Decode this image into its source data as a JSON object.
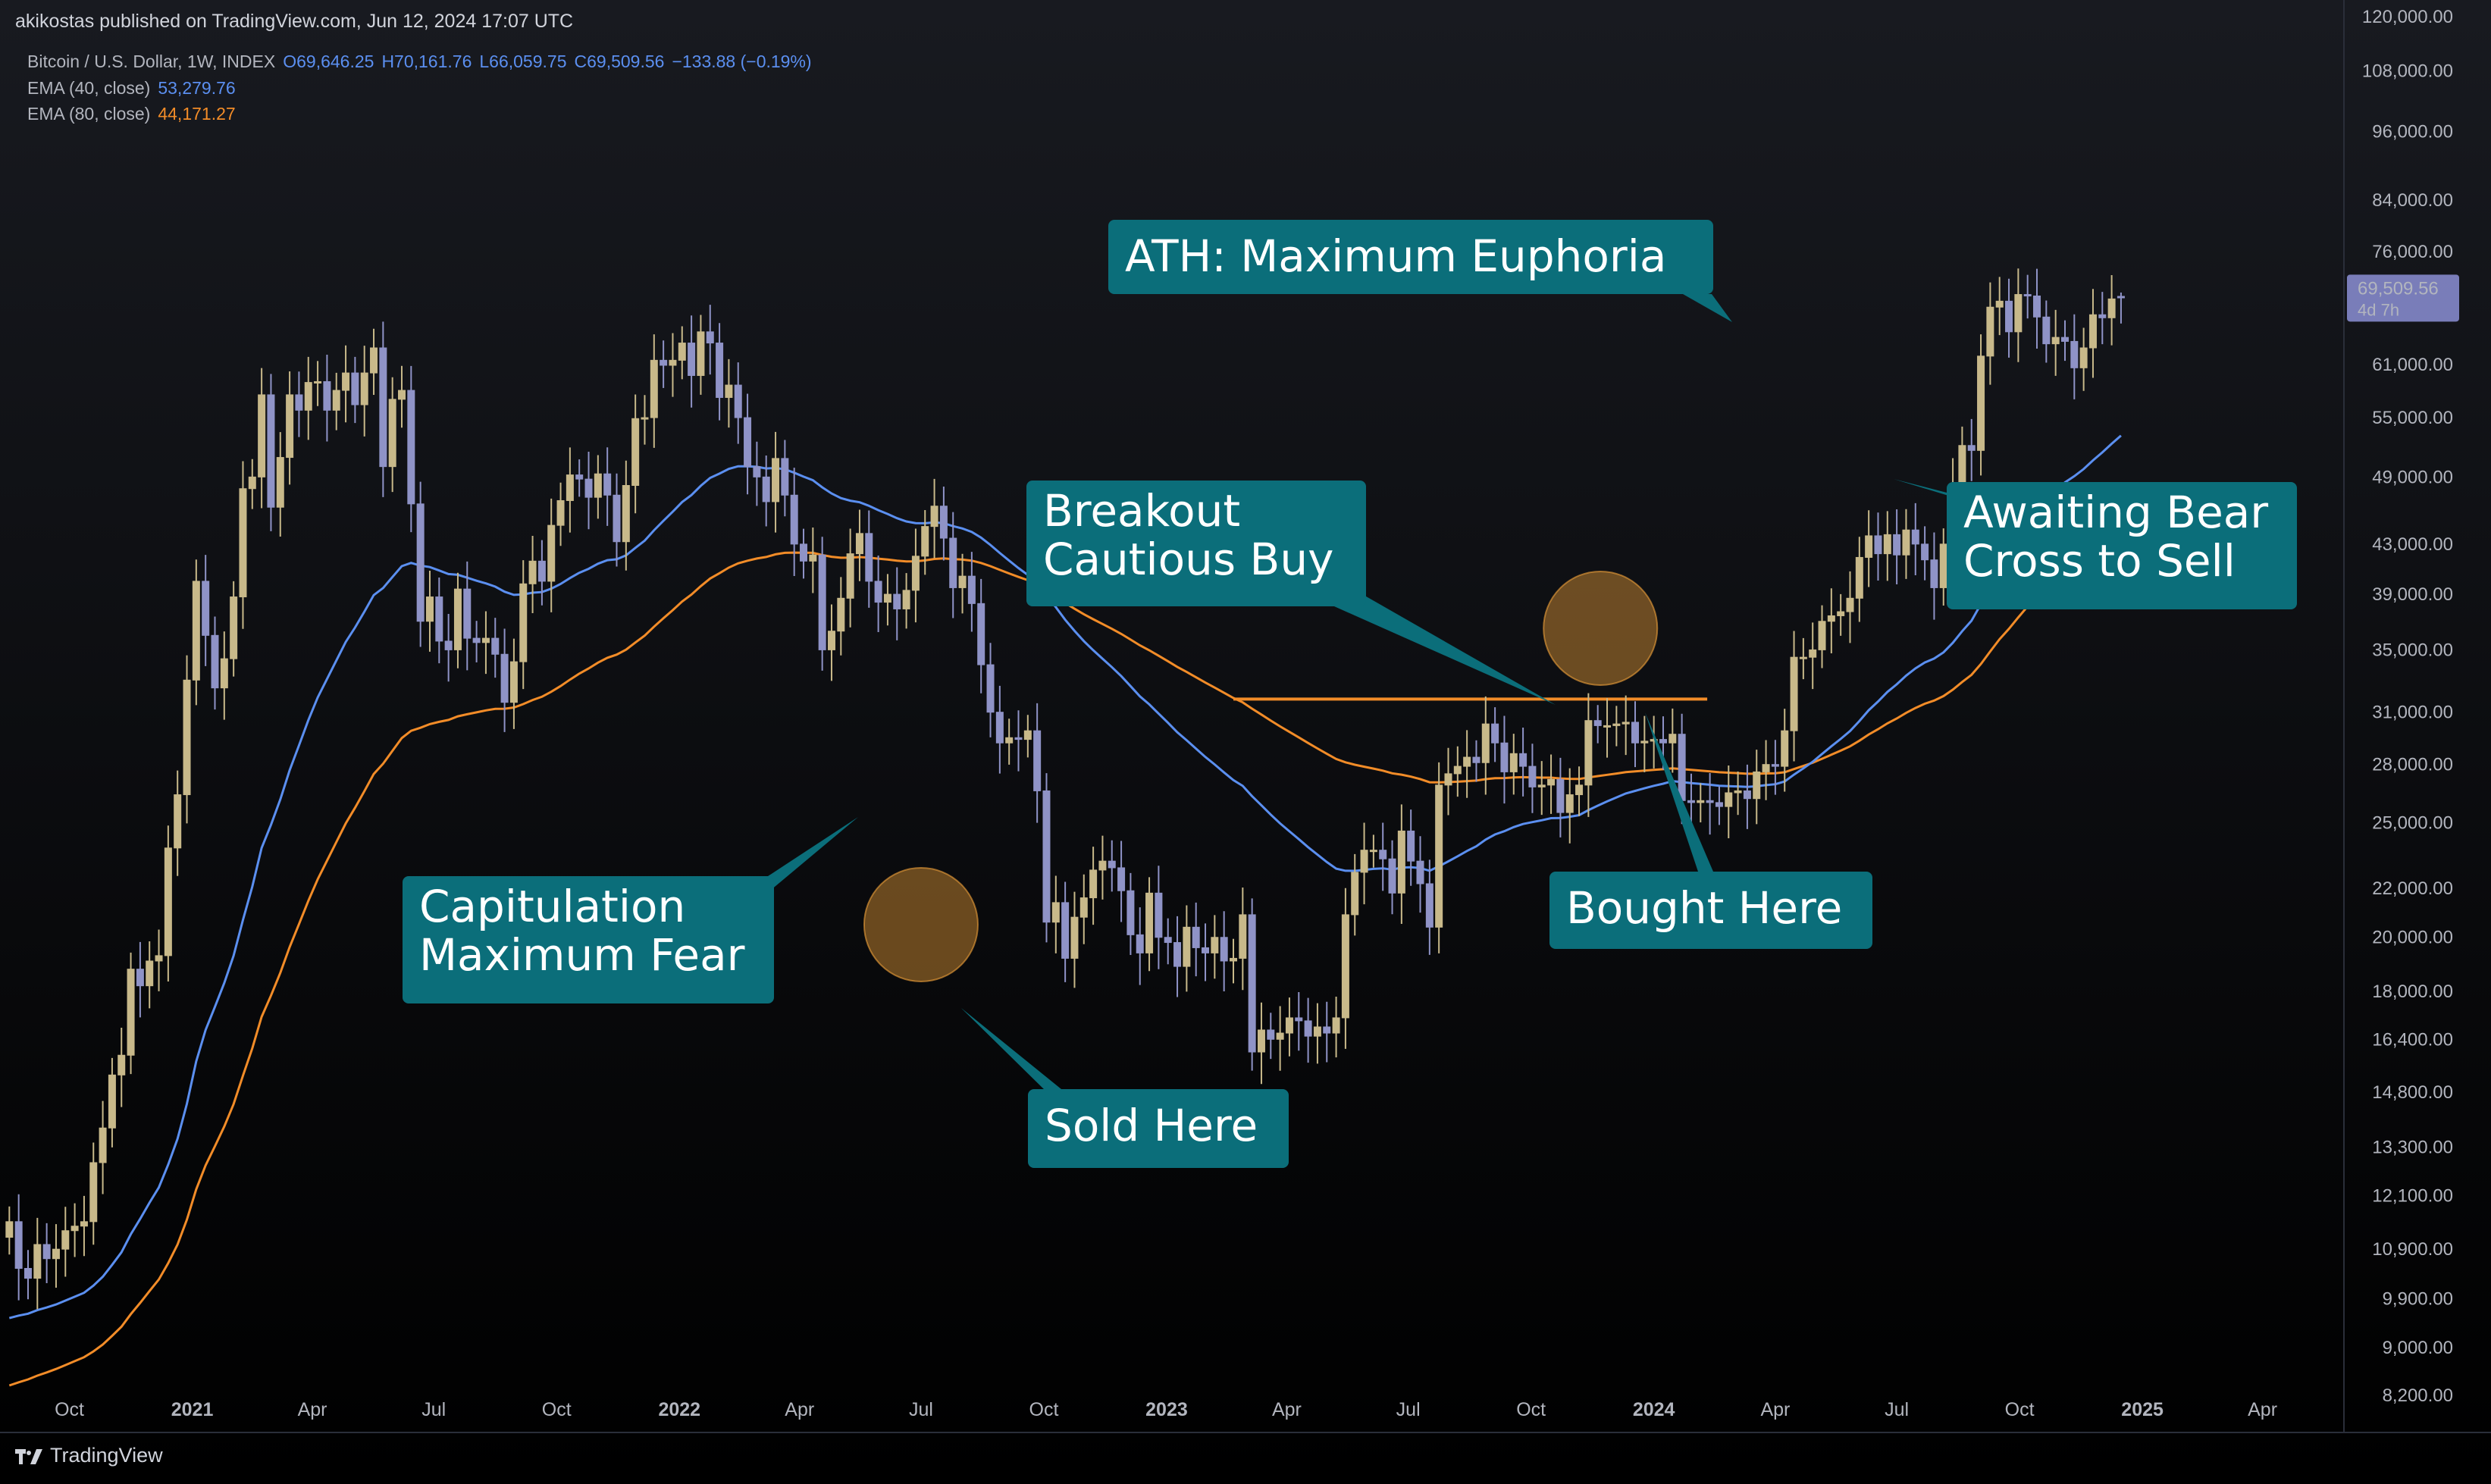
{
  "header": {
    "published": "akikostas published on TradingView.com, Jun 12, 2024 17:07 UTC",
    "symbol": "Bitcoin / U.S. Dollar, 1W, INDEX",
    "ohlc": {
      "o": "O69,646.25",
      "h": "H70,161.76",
      "l": "L66,059.75",
      "c": "C69,509.56",
      "change": "−133.88 (−0.19%)"
    },
    "indicators": [
      {
        "label": "EMA (40, close)",
        "value": "53,279.76",
        "color": "#5b8ff0"
      },
      {
        "label": "EMA (80, close)",
        "value": "44,171.27",
        "color": "#f28c28"
      }
    ]
  },
  "footer": {
    "brand": "TradingView"
  },
  "price_tag": {
    "price": "69,509.56",
    "countdown": "4d 7h"
  },
  "annotations": [
    {
      "id": "ath",
      "lines": [
        "ATH: Maximum Euphoria"
      ]
    },
    {
      "id": "breakout",
      "lines": [
        "Breakout",
        "Cautious Buy"
      ]
    },
    {
      "id": "awaiting",
      "lines": [
        "Awaiting Bear",
        "Cross to Sell"
      ]
    },
    {
      "id": "capitulation",
      "lines": [
        "Capitulation",
        "Maximum Fear"
      ]
    },
    {
      "id": "sold",
      "lines": [
        "Sold Here"
      ]
    },
    {
      "id": "bought",
      "lines": [
        "Bought Here"
      ]
    }
  ],
  "colors": {
    "background": "#000000",
    "candle_up": "#c8b98a",
    "candle_down": "#8f93c7",
    "ema40": "#5b8ff0",
    "ema80": "#f28c28",
    "callout": "#0b6e7a",
    "highlight_circle": "#f0a23a"
  },
  "chart_data": {
    "type": "candlestick",
    "title": "Bitcoin / U.S. Dollar, 1W, INDEX",
    "y_scale": "log",
    "ylim": [
      7800,
      124000
    ],
    "y_ticks": [
      120000,
      108000,
      96000,
      84000,
      76000,
      69509.56,
      61000,
      55000,
      49000,
      43000,
      39000,
      35000,
      31000,
      28000,
      25000,
      22000,
      20000,
      18000,
      16400,
      14800,
      13300,
      12100,
      10900,
      9900,
      9000,
      8200
    ],
    "y_tick_labels": [
      "120,000.00",
      "108,000.00",
      "96,000.00",
      "84,000.00",
      "76,000.00",
      "",
      "61,000.00",
      "55,000.00",
      "49,000.00",
      "43,000.00",
      "39,000.00",
      "35,000.00",
      "31,000.00",
      "28,000.00",
      "25,000.00",
      "22,000.00",
      "20,000.00",
      "18,000.00",
      "16,400.00",
      "14,800.00",
      "13,300.00",
      "12,100.00",
      "10,900.00",
      "9,900.00",
      "9,000.00",
      "8,200.00"
    ],
    "x_ticks": [
      {
        "date": "2020-10-01",
        "label": "Oct",
        "bold": false
      },
      {
        "date": "2021-01-01",
        "label": "2021",
        "bold": true
      },
      {
        "date": "2021-04-01",
        "label": "Apr",
        "bold": false
      },
      {
        "date": "2021-07-01",
        "label": "Jul",
        "bold": false
      },
      {
        "date": "2021-10-01",
        "label": "Oct",
        "bold": false
      },
      {
        "date": "2022-01-01",
        "label": "2022",
        "bold": true
      },
      {
        "date": "2022-04-01",
        "label": "Apr",
        "bold": false
      },
      {
        "date": "2022-07-01",
        "label": "Jul",
        "bold": false
      },
      {
        "date": "2022-10-01",
        "label": "Oct",
        "bold": false
      },
      {
        "date": "2023-01-01",
        "label": "2023",
        "bold": true
      },
      {
        "date": "2023-04-01",
        "label": "Apr",
        "bold": false
      },
      {
        "date": "2023-07-01",
        "label": "Jul",
        "bold": false
      },
      {
        "date": "2023-10-01",
        "label": "Oct",
        "bold": false
      },
      {
        "date": "2024-01-01",
        "label": "2024",
        "bold": true
      },
      {
        "date": "2024-04-01",
        "label": "Apr",
        "bold": false
      },
      {
        "date": "2024-07-01",
        "label": "Jul",
        "bold": false
      },
      {
        "date": "2024-10-01",
        "label": "Oct",
        "bold": false
      },
      {
        "date": "2025-01-01",
        "label": "2025",
        "bold": true
      },
      {
        "date": "2025-04-01",
        "label": "Apr",
        "bold": false
      }
    ],
    "x_range": [
      "2020-08-10",
      "2025-06-01"
    ],
    "weekly_close": [
      11500,
      10500,
      10300,
      11000,
      10700,
      10900,
      11300,
      11400,
      11500,
      12900,
      13800,
      15300,
      15900,
      18800,
      18200,
      19100,
      19300,
      23800,
      26400,
      33000,
      40000,
      36000,
      32500,
      34400,
      38800,
      47900,
      49000,
      57500,
      46200,
      50900,
      57500,
      55800,
      58900,
      59000,
      55800,
      58000,
      60000,
      56400,
      60000,
      63000,
      50000,
      57000,
      58000,
      46500,
      37000,
      38800,
      35600,
      35000,
      39400,
      35800,
      35500,
      35800,
      34700,
      31600,
      34200,
      39800,
      41600,
      40000,
      44600,
      46800,
      49200,
      48800,
      47100,
      49300,
      47300,
      43200,
      48200,
      54900,
      55000,
      61500,
      60900,
      61500,
      63600,
      59700,
      65000,
      63600,
      57200,
      58600,
      55000,
      50000,
      49000,
      46700,
      50800,
      47300,
      43000,
      41600,
      42100,
      35000,
      36300,
      38700,
      42200,
      43900,
      40000,
      38400,
      39000,
      37900,
      39300,
      42000,
      44500,
      46300,
      43500,
      39500,
      40400,
      38300,
      34000,
      31000,
      29200,
      29500,
      29400,
      29900,
      26600,
      20600,
      21400,
      19200,
      20800,
      21600,
      22800,
      23200,
      22900,
      21900,
      20100,
      19400,
      21800,
      20000,
      19800,
      18900,
      20400,
      19600,
      19400,
      20000,
      19100,
      19200,
      20900,
      16000,
      16700,
      16400,
      16600,
      17100,
      17000,
      16500,
      16800,
      16600,
      17100,
      20900,
      22700,
      23700,
      23700,
      23300,
      21800,
      24600,
      23200,
      22200,
      20400,
      26900,
      27500,
      27900,
      28400,
      28100,
      30300,
      29200,
      27600,
      28600,
      27900,
      26800,
      26900,
      27200,
      25500,
      26400,
      26900,
      30500,
      30200,
      30200,
      30300,
      30400,
      29200,
      29300,
      29400,
      29200,
      29700,
      26100,
      26000,
      26100,
      26000,
      25800,
      26500,
      26600,
      26200,
      27600,
      28000,
      27900,
      29900,
      34500,
      34500,
      35000,
      37000,
      37400,
      37700,
      38700,
      41900,
      43700,
      42200,
      43800,
      42100,
      44200,
      43000,
      41700,
      39500,
      43000,
      48200,
      52100,
      51600,
      62000,
      68200,
      69000,
      65000,
      69900,
      69700,
      66900,
      63500,
      64300,
      63800,
      60600,
      63000,
      67200,
      66800,
      69300,
      69500
    ],
    "ema40_last": 53279.76,
    "ema80_last": 44171.27,
    "last": {
      "o": 69646.25,
      "h": 70161.76,
      "l": 66059.75,
      "c": 69509.56,
      "change": -133.88,
      "change_pct": -0.19
    },
    "resistance_level": 31800
  }
}
